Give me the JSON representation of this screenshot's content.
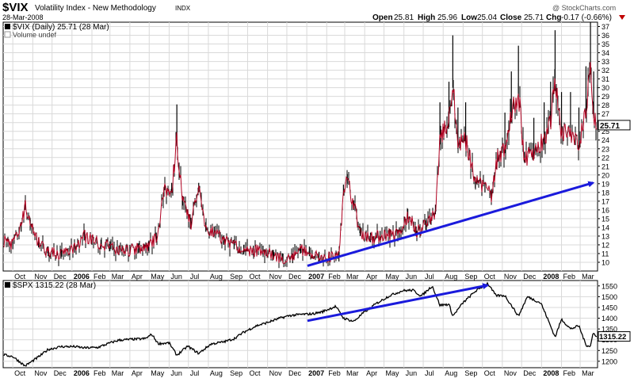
{
  "header": {
    "symbol": "$VIX",
    "name": "Volatility Index - New Methodology",
    "exchange": "INDX",
    "date": "28-Mar-2008",
    "copyright": "@ StockCharts.com",
    "open_label": "Open",
    "open": "25.81",
    "high_label": "High",
    "high": "25.96",
    "low_label": "Low",
    "low": "25.04",
    "close_label": "Close",
    "close": "25.71",
    "chg_label": "Chg",
    "chg": "-0.17 (-0.66%)"
  },
  "colors": {
    "grid": "#d9d9d9",
    "vix_line": "#b00020",
    "bar": "#000000",
    "spx_line": "#000000",
    "trend_arrow": "#1a1adc",
    "chg_negative": "#c00000"
  },
  "chart_data": [
    {
      "type": "line",
      "legend": "$VIX (Daily) 25.71 (28 Mar)",
      "legend_secondary": "Volume undef",
      "last_value_label": "25.71",
      "axis": "right",
      "ylim": [
        9,
        37.5
      ],
      "yticks": [
        10,
        11,
        12,
        13,
        14,
        15,
        16,
        17,
        18,
        19,
        20,
        21,
        22,
        23,
        24,
        25,
        26,
        27,
        28,
        29,
        30,
        31,
        32,
        33,
        34,
        35,
        36,
        37
      ],
      "x_range": [
        "2005-09-16",
        "2008-03-28"
      ],
      "series": [
        {
          "values_points": [
            [
              "2005-09-16",
              12.5
            ],
            [
              "2005-10-01",
              12.0
            ],
            [
              "2005-10-14",
              14.0
            ],
            [
              "2005-10-20",
              16.5
            ],
            [
              "2005-10-28",
              14.3
            ],
            [
              "2005-11-10",
              12.2
            ],
            [
              "2005-11-25",
              11.2
            ],
            [
              "2005-12-15",
              10.9
            ],
            [
              "2006-01-05",
              11.6
            ],
            [
              "2006-01-20",
              13.0
            ],
            [
              "2006-02-01",
              12.5
            ],
            [
              "2006-02-15",
              12.0
            ],
            [
              "2006-03-01",
              11.8
            ],
            [
              "2006-03-15",
              11.3
            ],
            [
              "2006-04-01",
              11.4
            ],
            [
              "2006-04-15",
              11.6
            ],
            [
              "2006-04-30",
              11.8
            ],
            [
              "2006-05-12",
              12.8
            ],
            [
              "2006-05-24",
              18.0
            ],
            [
              "2006-06-05",
              18.5
            ],
            [
              "2006-06-13",
              23.8
            ],
            [
              "2006-06-22",
              17.0
            ],
            [
              "2006-07-05",
              14.5
            ],
            [
              "2006-07-17",
              18.5
            ],
            [
              "2006-07-28",
              14.0
            ],
            [
              "2006-08-10",
              13.5
            ],
            [
              "2006-08-25",
              12.5
            ],
            [
              "2006-09-10",
              12.0
            ],
            [
              "2006-09-25",
              11.4
            ],
            [
              "2006-10-10",
              11.3
            ],
            [
              "2006-10-25",
              11.3
            ],
            [
              "2006-11-10",
              10.8
            ],
            [
              "2006-11-25",
              10.4
            ],
            [
              "2006-12-10",
              10.4
            ],
            [
              "2006-12-22",
              11.5
            ],
            [
              "2007-01-05",
              11.2
            ],
            [
              "2007-01-20",
              10.6
            ],
            [
              "2007-02-05",
              10.6
            ],
            [
              "2007-02-20",
              10.6
            ],
            [
              "2007-02-27",
              18.3
            ],
            [
              "2007-03-05",
              19.5
            ],
            [
              "2007-03-15",
              16.5
            ],
            [
              "2007-03-25",
              13.5
            ],
            [
              "2007-04-10",
              12.8
            ],
            [
              "2007-04-25",
              13.0
            ],
            [
              "2007-05-10",
              13.2
            ],
            [
              "2007-05-25",
              13.4
            ],
            [
              "2007-06-07",
              15.5
            ],
            [
              "2007-06-20",
              13.5
            ],
            [
              "2007-07-05",
              14.2
            ],
            [
              "2007-07-20",
              16.0
            ],
            [
              "2007-07-27",
              24.0
            ],
            [
              "2007-08-10",
              26.0
            ],
            [
              "2007-08-16",
              30.5
            ],
            [
              "2007-08-24",
              23.5
            ],
            [
              "2007-09-05",
              24.0
            ],
            [
              "2007-09-20",
              19.0
            ],
            [
              "2007-10-05",
              18.5
            ],
            [
              "2007-10-15",
              17.8
            ],
            [
              "2007-10-25",
              22.0
            ],
            [
              "2007-11-05",
              23.0
            ],
            [
              "2007-11-15",
              27.0
            ],
            [
              "2007-11-26",
              29.5
            ],
            [
              "2007-12-05",
              22.0
            ],
            [
              "2007-12-20",
              22.5
            ],
            [
              "2008-01-05",
              24.0
            ],
            [
              "2008-01-15",
              26.0
            ],
            [
              "2008-01-22",
              31.0
            ],
            [
              "2008-02-01",
              25.0
            ],
            [
              "2008-02-15",
              25.0
            ],
            [
              "2008-02-28",
              23.5
            ],
            [
              "2008-03-10",
              27.5
            ],
            [
              "2008-03-17",
              32.0
            ],
            [
              "2008-03-22",
              27.0
            ],
            [
              "2008-03-28",
              25.71
            ]
          ]
        }
      ],
      "annotations": [
        {
          "type": "trend-arrow",
          "from": [
            "2007-01-02",
            9.6
          ],
          "to": [
            "2008-03-21",
            19.1
          ]
        }
      ]
    },
    {
      "type": "line",
      "legend": "$SPX 1315.22 (28 Mar)",
      "last_value_label": "1315.22",
      "axis": "right",
      "ylim": [
        1170,
        1575
      ],
      "yticks": [
        1200,
        1250,
        1300,
        1350,
        1400,
        1450,
        1500,
        1550
      ],
      "x_range": [
        "2005-09-16",
        "2008-03-28"
      ],
      "series": [
        {
          "values_points": [
            [
              "2005-09-16",
              1230
            ],
            [
              "2005-10-01",
              1222
            ],
            [
              "2005-10-20",
              1178
            ],
            [
              "2005-11-10",
              1220
            ],
            [
              "2005-11-25",
              1255
            ],
            [
              "2005-12-15",
              1268
            ],
            [
              "2006-01-05",
              1268
            ],
            [
              "2006-01-20",
              1262
            ],
            [
              "2006-02-10",
              1264
            ],
            [
              "2006-03-01",
              1285
            ],
            [
              "2006-03-15",
              1298
            ],
            [
              "2006-04-05",
              1302
            ],
            [
              "2006-04-25",
              1305
            ],
            [
              "2006-05-05",
              1325
            ],
            [
              "2006-05-15",
              1282
            ],
            [
              "2006-06-01",
              1285
            ],
            [
              "2006-06-13",
              1228
            ],
            [
              "2006-06-30",
              1270
            ],
            [
              "2006-07-17",
              1236
            ],
            [
              "2006-08-05",
              1280
            ],
            [
              "2006-08-25",
              1290
            ],
            [
              "2006-09-10",
              1305
            ],
            [
              "2006-09-25",
              1335
            ],
            [
              "2006-10-15",
              1365
            ],
            [
              "2006-11-01",
              1380
            ],
            [
              "2006-11-20",
              1400
            ],
            [
              "2006-12-05",
              1412
            ],
            [
              "2006-12-25",
              1418
            ],
            [
              "2007-01-10",
              1420
            ],
            [
              "2007-01-25",
              1430
            ],
            [
              "2007-02-15",
              1455
            ],
            [
              "2007-02-27",
              1400
            ],
            [
              "2007-03-15",
              1385
            ],
            [
              "2007-03-30",
              1425
            ],
            [
              "2007-04-20",
              1470
            ],
            [
              "2007-05-10",
              1505
            ],
            [
              "2007-05-30",
              1528
            ],
            [
              "2007-06-15",
              1530
            ],
            [
              "2007-06-28",
              1503
            ],
            [
              "2007-07-15",
              1550
            ],
            [
              "2007-07-27",
              1460
            ],
            [
              "2007-08-10",
              1465
            ],
            [
              "2007-08-16",
              1410
            ],
            [
              "2007-09-01",
              1472
            ],
            [
              "2007-09-20",
              1525
            ],
            [
              "2007-10-09",
              1562
            ],
            [
              "2007-10-22",
              1505
            ],
            [
              "2007-11-05",
              1505
            ],
            [
              "2007-11-26",
              1410
            ],
            [
              "2007-12-10",
              1500
            ],
            [
              "2007-12-31",
              1470
            ],
            [
              "2008-01-10",
              1400
            ],
            [
              "2008-01-22",
              1312
            ],
            [
              "2008-02-01",
              1395
            ],
            [
              "2008-02-15",
              1350
            ],
            [
              "2008-02-28",
              1365
            ],
            [
              "2008-03-10",
              1275
            ],
            [
              "2008-03-17",
              1270
            ],
            [
              "2008-03-21",
              1330
            ],
            [
              "2008-03-28",
              1315.22
            ]
          ]
        }
      ],
      "annotations": [
        {
          "type": "trend-arrow",
          "from": [
            "2007-01-02",
            1388
          ],
          "to": [
            "2007-10-09",
            1553
          ]
        }
      ]
    }
  ],
  "x_axis": {
    "labels": [
      {
        "text": "Oct",
        "date": "2005-10-01",
        "bold": false
      },
      {
        "text": "Nov",
        "date": "2005-11-01",
        "bold": false
      },
      {
        "text": "Dec",
        "date": "2005-12-01",
        "bold": false
      },
      {
        "text": "2006",
        "date": "2006-01-01",
        "bold": true
      },
      {
        "text": "Feb",
        "date": "2006-02-01",
        "bold": false
      },
      {
        "text": "Mar",
        "date": "2006-03-01",
        "bold": false
      },
      {
        "text": "Apr",
        "date": "2006-04-01",
        "bold": false
      },
      {
        "text": "May",
        "date": "2006-05-01",
        "bold": false
      },
      {
        "text": "Jun",
        "date": "2006-06-01",
        "bold": false
      },
      {
        "text": "Jul",
        "date": "2006-07-01",
        "bold": false
      },
      {
        "text": "Aug",
        "date": "2006-08-01",
        "bold": false
      },
      {
        "text": "Sep",
        "date": "2006-09-01",
        "bold": false
      },
      {
        "text": "Oct",
        "date": "2006-10-01",
        "bold": false
      },
      {
        "text": "Nov",
        "date": "2006-11-01",
        "bold": false
      },
      {
        "text": "Dec",
        "date": "2006-12-01",
        "bold": false
      },
      {
        "text": "2007",
        "date": "2007-01-01",
        "bold": true
      },
      {
        "text": "Feb",
        "date": "2007-02-01",
        "bold": false
      },
      {
        "text": "Mar",
        "date": "2007-03-01",
        "bold": false
      },
      {
        "text": "Apr",
        "date": "2007-04-01",
        "bold": false
      },
      {
        "text": "May",
        "date": "2007-05-01",
        "bold": false
      },
      {
        "text": "Jun",
        "date": "2007-06-01",
        "bold": false
      },
      {
        "text": "Jul",
        "date": "2007-07-01",
        "bold": false
      },
      {
        "text": "Aug",
        "date": "2007-08-01",
        "bold": false
      },
      {
        "text": "Sep",
        "date": "2007-09-01",
        "bold": false
      },
      {
        "text": "Oct",
        "date": "2007-10-01",
        "bold": false
      },
      {
        "text": "Nov",
        "date": "2007-11-01",
        "bold": false
      },
      {
        "text": "Dec",
        "date": "2007-12-01",
        "bold": false
      },
      {
        "text": "2008",
        "date": "2008-01-01",
        "bold": true
      },
      {
        "text": "Feb",
        "date": "2008-02-01",
        "bold": false
      },
      {
        "text": "Mar",
        "date": "2008-03-01",
        "bold": false
      }
    ]
  }
}
